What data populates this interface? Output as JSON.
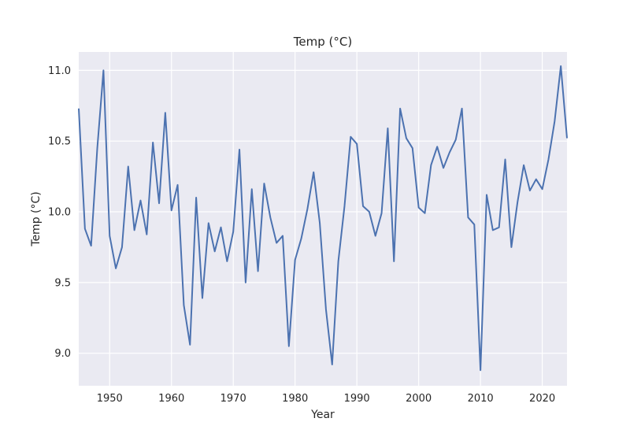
{
  "chart_data": {
    "type": "line",
    "title": "Temp (°C)",
    "xlabel": "Year",
    "ylabel": "Temp (°C)",
    "xlim": [
      1945,
      2024
    ],
    "ylim": [
      8.77,
      11.13
    ],
    "xticks": [
      1950,
      1960,
      1970,
      1980,
      1990,
      2000,
      2010,
      2020
    ],
    "yticks": [
      9.0,
      9.5,
      10.0,
      10.5,
      11.0
    ],
    "ytick_labels": [
      "9.0",
      "9.5",
      "10.0",
      "10.5",
      "11.0"
    ],
    "grid": true,
    "background": "#eaeaf2",
    "line_color": "#4c72b0",
    "series": [
      {
        "x": [
          1945,
          1946,
          1947,
          1948,
          1949,
          1950,
          1951,
          1952,
          1953,
          1954,
          1955,
          1956,
          1957,
          1958,
          1959,
          1960,
          1961,
          1962,
          1963,
          1964,
          1965,
          1966,
          1967,
          1968,
          1969,
          1970,
          1971,
          1972,
          1973,
          1974,
          1975,
          1976,
          1977,
          1978,
          1979,
          1980,
          1981,
          1982,
          1983,
          1984,
          1985,
          1986,
          1987,
          1988,
          1989,
          1990,
          1991,
          1992,
          1993,
          1994,
          1995,
          1996,
          1997,
          1998,
          1999,
          2000,
          2001,
          2002,
          2003,
          2004,
          2005,
          2006,
          2007,
          2008,
          2009,
          2010,
          2011,
          2012,
          2013,
          2014,
          2015,
          2016,
          2017,
          2018,
          2019,
          2020,
          2021,
          2022,
          2023,
          2024
        ],
        "values": [
          10.73,
          9.88,
          9.76,
          10.45,
          11.0,
          9.83,
          9.6,
          9.75,
          10.32,
          9.87,
          10.08,
          9.84,
          10.49,
          10.06,
          10.7,
          10.01,
          10.19,
          9.34,
          9.06,
          10.1,
          9.39,
          9.92,
          9.72,
          9.89,
          9.65,
          9.86,
          10.44,
          9.5,
          10.16,
          9.58,
          10.2,
          9.96,
          9.78,
          9.83,
          9.05,
          9.66,
          9.81,
          10.02,
          10.28,
          9.92,
          9.31,
          8.92,
          9.65,
          10.04,
          10.53,
          10.48,
          10.04,
          10.0,
          9.83,
          9.99,
          10.59,
          9.65,
          10.73,
          10.52,
          10.45,
          10.03,
          9.99,
          10.33,
          10.46,
          10.31,
          10.42,
          10.51,
          10.73,
          9.96,
          9.91,
          8.88,
          10.12,
          9.87,
          9.89,
          10.37,
          9.75,
          10.07,
          10.33,
          10.15,
          10.23,
          10.16,
          10.37,
          10.64,
          11.03,
          10.52
        ]
      }
    ]
  }
}
